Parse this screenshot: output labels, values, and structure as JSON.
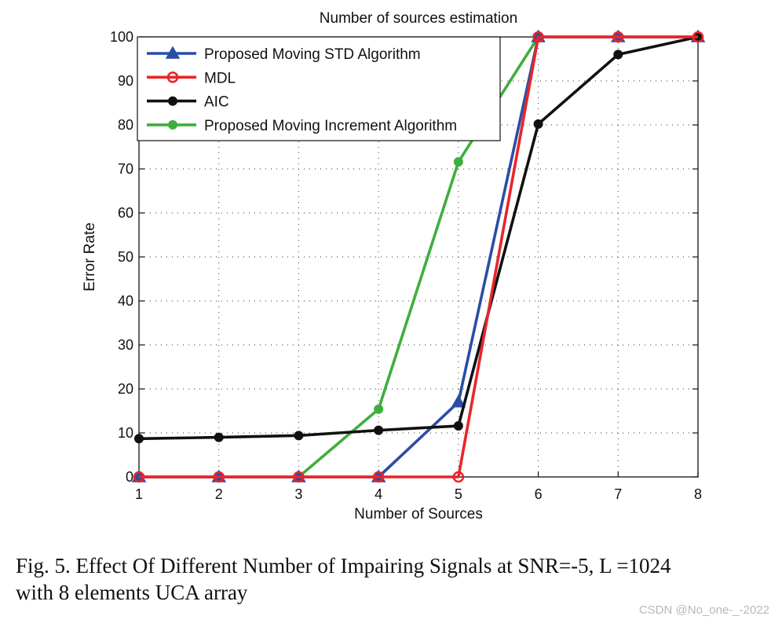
{
  "chart_data": {
    "type": "line",
    "title": "Number of sources estimation",
    "xlabel": "Number of Sources",
    "ylabel": "Error Rate",
    "x": [
      1,
      2,
      3,
      4,
      5,
      6,
      7,
      8
    ],
    "xlim": [
      1,
      8
    ],
    "ylim": [
      0,
      100
    ],
    "xticks": [
      "1",
      "2",
      "3",
      "4",
      "5",
      "6",
      "7",
      "8"
    ],
    "yticks": [
      "0",
      "10",
      "20",
      "30",
      "40",
      "50",
      "60",
      "70",
      "80",
      "90",
      "100"
    ],
    "grid": true,
    "legend_position": "top-left",
    "series": [
      {
        "name": "Proposed Moving STD Algorithm",
        "values": [
          0,
          0,
          0,
          0,
          17,
          100,
          100,
          100
        ],
        "color": "#2a4ea5",
        "marker": "triangle"
      },
      {
        "name": "MDL",
        "values": [
          0,
          0,
          0,
          0,
          0,
          100,
          100,
          100
        ],
        "color": "#e8262a",
        "marker": "circle-open"
      },
      {
        "name": "AIC",
        "values": [
          8.7,
          9,
          9.4,
          10.6,
          11.6,
          80.2,
          96,
          100
        ],
        "color": "#111111",
        "marker": "dot"
      },
      {
        "name": "Proposed Moving Increment Algorithm",
        "values": [
          0,
          0,
          0,
          15.4,
          71.6,
          100,
          100,
          100
        ],
        "color": "#3fae3f",
        "marker": "dot"
      }
    ],
    "draw_order": [
      3,
      0,
      2,
      1
    ]
  },
  "caption": {
    "line1": "Fig. 5.   Effect Of Different Number of Impairing Signals at SNR=-5, L =1024",
    "line2": "with 8 elements UCA array"
  },
  "watermark": "CSDN @No_one-_-2022"
}
